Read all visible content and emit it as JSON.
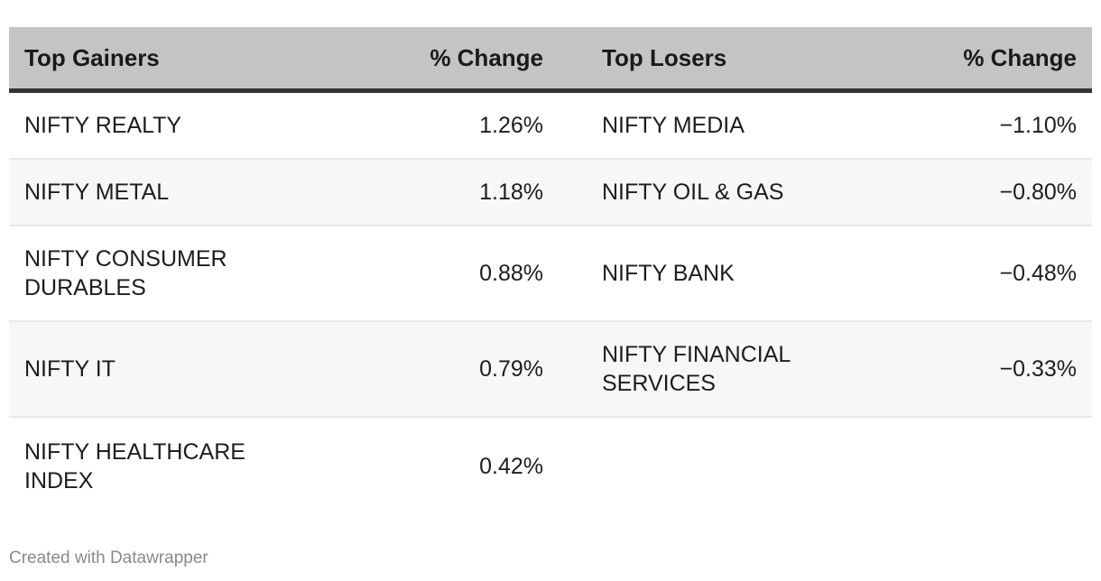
{
  "chart_data": {
    "type": "table",
    "columns": [
      "Top Gainers",
      "% Change",
      "Top Losers",
      "% Change"
    ],
    "rows": [
      [
        "NIFTY REALTY",
        "1.26%",
        "NIFTY MEDIA",
        "−1.10%"
      ],
      [
        "NIFTY METAL",
        "1.18%",
        "NIFTY OIL & GAS",
        "−0.80%"
      ],
      [
        "NIFTY CONSUMER DURABLES",
        "0.88%",
        "NIFTY BANK",
        "−0.48%"
      ],
      [
        "NIFTY IT",
        "0.79%",
        "NIFTY FINANCIAL SERVICES",
        "−0.33%"
      ],
      [
        "NIFTY HEALTHCARE INDEX",
        "0.42%",
        "",
        ""
      ]
    ],
    "colors": {
      "header_bg": "#c4c4c4",
      "header_border": "#333333",
      "alt_row_bg": "#f7f7f7",
      "row_divider": "#e8e8e8"
    }
  },
  "footer": {
    "credit": "Created with Datawrapper"
  }
}
